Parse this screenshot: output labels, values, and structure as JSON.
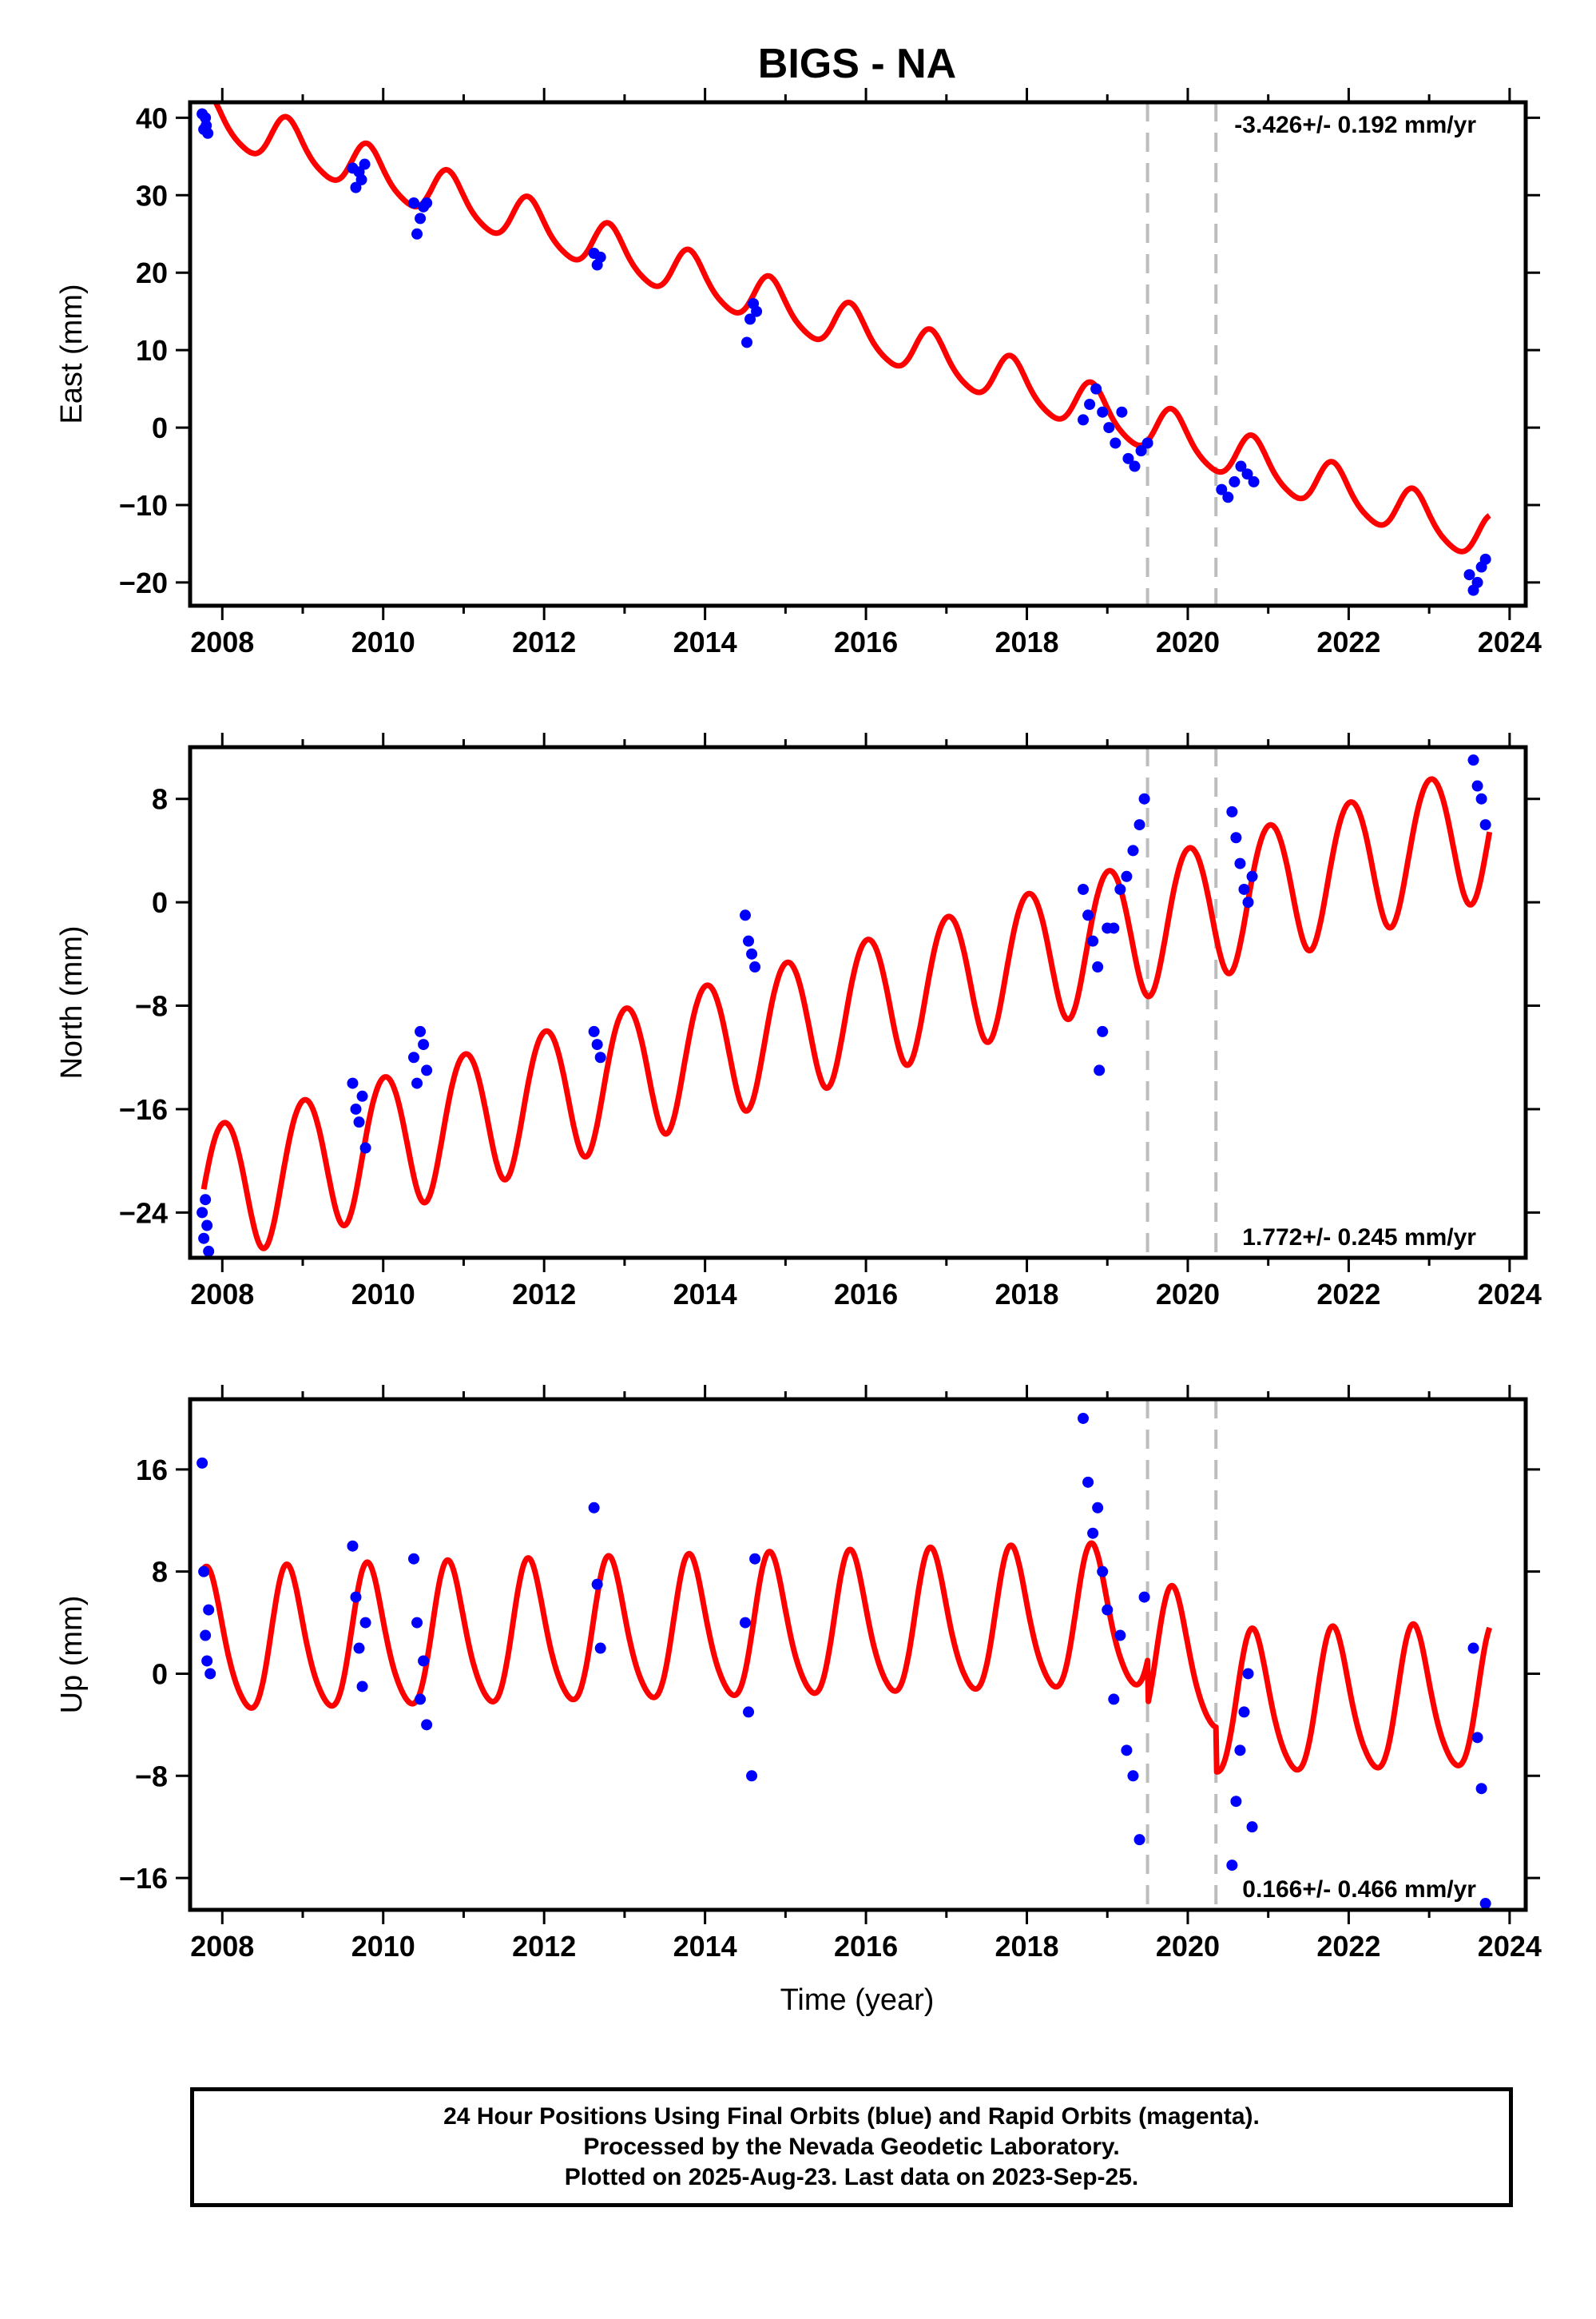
{
  "title": "BIGS - NA",
  "xlabel": "Time (year)",
  "footer": {
    "line1": "24 Hour Positions Using Final Orbits (blue) and Rapid Orbits (magenta).",
    "line2": "Processed by the Nevada Geodetic Laboratory.",
    "line3": "Plotted on 2025-Aug-23. Last data on 2023-Sep-25."
  },
  "colors": {
    "observations": "#0000ff",
    "model": "#ff0000",
    "breaks": "#bdbdbd"
  },
  "xlim": [
    2007.6,
    2024.2
  ],
  "x_ticks": [
    2008,
    2010,
    2012,
    2014,
    2016,
    2018,
    2020,
    2022,
    2024
  ],
  "x_tick_labels": [
    "2008",
    "2010",
    "2012",
    "2014",
    "2016",
    "2018",
    "2020",
    "2022",
    "2024"
  ],
  "break_epochs": [
    2019.5,
    2020.35
  ],
  "chart_data": [
    {
      "type": "scatter",
      "component": "east",
      "ylabel": "East (mm)",
      "ylim": [
        -23,
        42
      ],
      "y_ticks": [
        -20,
        -10,
        0,
        10,
        20,
        30,
        40
      ],
      "y_tick_labels": [
        "−20",
        "−10",
        "0",
        "10",
        "20",
        "30",
        "40"
      ],
      "rate_label": "-3.426+/- 0.192 mm/yr",
      "rate_position": "top-right",
      "series": [
        {
          "kind": "points",
          "x": [
            2007.75,
            2007.77,
            2007.79,
            2007.8,
            2007.82,
            2009.62,
            2009.66,
            2009.7,
            2009.73,
            2009.77,
            2010.38,
            2010.42,
            2010.46,
            2010.5,
            2010.54,
            2012.62,
            2012.66,
            2012.7,
            2014.52,
            2014.56,
            2014.6,
            2014.64,
            2018.7,
            2018.78,
            2018.86,
            2018.94,
            2019.02,
            2019.1,
            2019.18,
            2019.26,
            2019.34,
            2019.42,
            2019.5,
            2020.42,
            2020.5,
            2020.58,
            2020.66,
            2020.74,
            2020.82,
            2023.5,
            2023.55,
            2023.6,
            2023.65,
            2023.7
          ],
          "y": [
            40.5,
            38.5,
            40,
            39,
            38,
            33.5,
            31,
            33,
            32,
            34,
            29,
            25,
            27,
            28.5,
            29,
            22.5,
            21,
            22,
            11,
            14,
            16,
            15,
            1,
            3,
            5,
            2,
            0,
            -2,
            2,
            -4,
            -5,
            -3,
            -2,
            -8,
            -9,
            -7,
            -5,
            -6,
            -7,
            -19,
            -21,
            -20,
            -18,
            -17
          ]
        }
      ],
      "model": {
        "intercept_mm": 40.2,
        "t0": 2007.77,
        "rate_mm_yr": -3.426,
        "annual_amp_mm": 3.0,
        "annual_phase_yr": 0.05,
        "semiannual_amp_mm": 0.5,
        "offsets": []
      }
    },
    {
      "type": "scatter",
      "component": "north",
      "ylabel": "North (mm)",
      "ylim": [
        -27.5,
        12
      ],
      "y_ticks": [
        -24,
        -16,
        -8,
        0,
        8
      ],
      "y_tick_labels": [
        "−24",
        "−16",
        "−8",
        "0",
        "8"
      ],
      "rate_label": "1.772+/- 0.245 mm/yr",
      "rate_position": "bottom-right",
      "series": [
        {
          "kind": "points",
          "x": [
            2007.75,
            2007.77,
            2007.79,
            2007.81,
            2007.83,
            2009.62,
            2009.66,
            2009.7,
            2009.74,
            2009.78,
            2010.38,
            2010.42,
            2010.46,
            2010.5,
            2010.54,
            2012.62,
            2012.66,
            2012.7,
            2014.5,
            2014.54,
            2014.58,
            2014.62,
            2018.7,
            2018.76,
            2018.82,
            2018.88,
            2018.9,
            2018.94,
            2019.0,
            2019.08,
            2019.16,
            2019.24,
            2019.32,
            2019.4,
            2019.46,
            2020.55,
            2020.6,
            2020.65,
            2020.7,
            2020.75,
            2020.8,
            2023.55,
            2023.6,
            2023.65,
            2023.7
          ],
          "y": [
            -24,
            -26,
            -23,
            -25,
            -27,
            -14,
            -16,
            -17,
            -15,
            -19,
            -12,
            -14,
            -10,
            -11,
            -13,
            -10,
            -11,
            -12,
            -1,
            -3,
            -4,
            -5,
            1,
            -1,
            -3,
            -5,
            -13,
            -10,
            -2,
            -2,
            1,
            2,
            4,
            6,
            8,
            7,
            5,
            3,
            1,
            0,
            2,
            11,
            9,
            8,
            6
          ]
        }
      ],
      "model": {
        "intercept_mm": -22.5,
        "t0": 2007.77,
        "rate_mm_yr": 1.772,
        "annual_amp_mm": 5.3,
        "annual_phase_yr": 0.25,
        "semiannual_amp_mm": 0.3,
        "offsets": []
      }
    },
    {
      "type": "scatter",
      "component": "up",
      "ylabel": "Up (mm)",
      "ylim": [
        -18.5,
        21.5
      ],
      "y_ticks": [
        -16,
        -8,
        0,
        8,
        16
      ],
      "y_tick_labels": [
        "−16",
        "−8",
        "0",
        "8",
        "16"
      ],
      "rate_label": "0.166+/- 0.466 mm/yr",
      "rate_position": "bottom-right",
      "series": [
        {
          "kind": "points",
          "x": [
            2007.75,
            2007.77,
            2007.79,
            2007.81,
            2007.83,
            2007.85,
            2009.62,
            2009.66,
            2009.7,
            2009.74,
            2009.78,
            2010.38,
            2010.42,
            2010.46,
            2010.5,
            2010.54,
            2012.62,
            2012.66,
            2012.7,
            2014.5,
            2014.54,
            2014.58,
            2014.62,
            2018.7,
            2018.76,
            2018.82,
            2018.88,
            2018.94,
            2019.0,
            2019.08,
            2019.16,
            2019.24,
            2019.32,
            2019.4,
            2019.46,
            2020.55,
            2020.6,
            2020.65,
            2020.7,
            2020.75,
            2020.8,
            2023.55,
            2023.6,
            2023.65,
            2023.7
          ],
          "y": [
            16.5,
            8,
            3,
            1,
            5,
            0,
            10,
            6,
            2,
            -1,
            4,
            9,
            4,
            -2,
            1,
            -4,
            13,
            7,
            2,
            4,
            -3,
            -8,
            9,
            20,
            15,
            11,
            13,
            8,
            5,
            -2,
            3,
            -6,
            -8,
            -13,
            6,
            -15,
            -10,
            -6,
            -3,
            0,
            -12,
            2,
            -5,
            -9,
            -18
          ]
        }
      ],
      "model": {
        "intercept_mm": 2.2,
        "t0": 2007.77,
        "rate_mm_yr": 0.166,
        "annual_amp_mm": 5.5,
        "annual_phase_yr": 0.05,
        "semiannual_amp_mm": 0.8,
        "offsets": [
          {
            "epoch": 2019.5,
            "value": -3.5
          },
          {
            "epoch": 2020.35,
            "value": -3.5
          }
        ]
      }
    }
  ]
}
